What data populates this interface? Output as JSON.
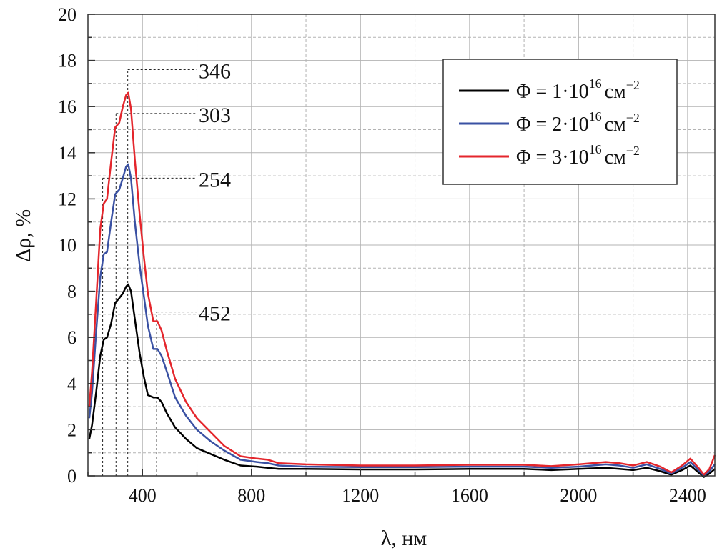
{
  "chart_data": {
    "type": "line",
    "xlabel": "λ, нм",
    "ylabel": "Δρ, %",
    "xlim": [
      200,
      2500
    ],
    "ylim": [
      0,
      20
    ],
    "x_ticks": [
      400,
      800,
      1200,
      1600,
      2000,
      2400
    ],
    "y_ticks": [
      0,
      2,
      4,
      6,
      8,
      10,
      12,
      14,
      16,
      18,
      20
    ],
    "grid": true,
    "legend_position": "top-right",
    "series": [
      {
        "name": "Φ = 1·10¹⁶ см⁻²",
        "legend_main": "Φ = 1·10",
        "legend_sup": "16",
        "legend_unit": "см",
        "legend_unit_sup": "−2",
        "color": "#000000",
        "points": [
          [
            205,
            1.6
          ],
          [
            215,
            2.2
          ],
          [
            230,
            3.6
          ],
          [
            245,
            5.2
          ],
          [
            258,
            5.9
          ],
          [
            270,
            6.0
          ],
          [
            285,
            6.6
          ],
          [
            300,
            7.5
          ],
          [
            315,
            7.7
          ],
          [
            328,
            7.9
          ],
          [
            340,
            8.2
          ],
          [
            348,
            8.3
          ],
          [
            358,
            8.0
          ],
          [
            372,
            6.8
          ],
          [
            390,
            5.3
          ],
          [
            405,
            4.3
          ],
          [
            420,
            3.5
          ],
          [
            440,
            3.4
          ],
          [
            455,
            3.4
          ],
          [
            470,
            3.2
          ],
          [
            490,
            2.7
          ],
          [
            520,
            2.1
          ],
          [
            560,
            1.6
          ],
          [
            600,
            1.2
          ],
          [
            650,
            0.95
          ],
          [
            700,
            0.7
          ],
          [
            760,
            0.45
          ],
          [
            820,
            0.4
          ],
          [
            860,
            0.35
          ],
          [
            900,
            0.3
          ],
          [
            1000,
            0.3
          ],
          [
            1200,
            0.28
          ],
          [
            1400,
            0.28
          ],
          [
            1600,
            0.3
          ],
          [
            1800,
            0.3
          ],
          [
            1900,
            0.25
          ],
          [
            2000,
            0.3
          ],
          [
            2100,
            0.35
          ],
          [
            2150,
            0.3
          ],
          [
            2200,
            0.25
          ],
          [
            2250,
            0.35
          ],
          [
            2300,
            0.2
          ],
          [
            2340,
            0.05
          ],
          [
            2380,
            0.25
          ],
          [
            2410,
            0.45
          ],
          [
            2440,
            0.15
          ],
          [
            2460,
            -0.05
          ],
          [
            2480,
            0.1
          ],
          [
            2500,
            0.3
          ]
        ]
      },
      {
        "name": "Φ = 2·10¹⁶ см⁻²",
        "legend_main": "Φ = 2·10",
        "legend_sup": "16",
        "legend_unit": "см",
        "legend_unit_sup": "−2",
        "color": "#3a51a3",
        "points": [
          [
            205,
            2.5
          ],
          [
            215,
            3.6
          ],
          [
            230,
            6.2
          ],
          [
            245,
            8.6
          ],
          [
            258,
            9.6
          ],
          [
            270,
            9.7
          ],
          [
            285,
            11.0
          ],
          [
            300,
            12.2
          ],
          [
            315,
            12.4
          ],
          [
            328,
            12.9
          ],
          [
            340,
            13.4
          ],
          [
            348,
            13.5
          ],
          [
            358,
            12.9
          ],
          [
            372,
            11.0
          ],
          [
            390,
            9.1
          ],
          [
            405,
            7.8
          ],
          [
            420,
            6.5
          ],
          [
            440,
            5.5
          ],
          [
            455,
            5.5
          ],
          [
            470,
            5.2
          ],
          [
            490,
            4.5
          ],
          [
            520,
            3.4
          ],
          [
            560,
            2.6
          ],
          [
            600,
            2.0
          ],
          [
            650,
            1.5
          ],
          [
            700,
            1.1
          ],
          [
            760,
            0.7
          ],
          [
            820,
            0.6
          ],
          [
            860,
            0.55
          ],
          [
            900,
            0.45
          ],
          [
            1000,
            0.4
          ],
          [
            1200,
            0.38
          ],
          [
            1400,
            0.38
          ],
          [
            1600,
            0.4
          ],
          [
            1800,
            0.4
          ],
          [
            1900,
            0.35
          ],
          [
            2000,
            0.4
          ],
          [
            2100,
            0.5
          ],
          [
            2150,
            0.45
          ],
          [
            2200,
            0.35
          ],
          [
            2250,
            0.5
          ],
          [
            2300,
            0.3
          ],
          [
            2340,
            0.1
          ],
          [
            2380,
            0.35
          ],
          [
            2410,
            0.6
          ],
          [
            2440,
            0.25
          ],
          [
            2460,
            0.0
          ],
          [
            2480,
            0.2
          ],
          [
            2500,
            0.5
          ]
        ]
      },
      {
        "name": "Φ = 3·10¹⁶ см⁻²",
        "legend_main": "Φ = 3·10",
        "legend_sup": "16",
        "legend_unit": "см",
        "legend_unit_sup": "−2",
        "color": "#e4262c",
        "points": [
          [
            205,
            3.0
          ],
          [
            215,
            4.5
          ],
          [
            230,
            7.5
          ],
          [
            245,
            10.7
          ],
          [
            258,
            11.8
          ],
          [
            270,
            12.0
          ],
          [
            285,
            13.6
          ],
          [
            300,
            15.1
          ],
          [
            315,
            15.3
          ],
          [
            328,
            16.0
          ],
          [
            340,
            16.5
          ],
          [
            348,
            16.6
          ],
          [
            358,
            15.9
          ],
          [
            372,
            13.7
          ],
          [
            390,
            11.3
          ],
          [
            405,
            9.5
          ],
          [
            420,
            7.9
          ],
          [
            440,
            6.7
          ],
          [
            455,
            6.7
          ],
          [
            470,
            6.3
          ],
          [
            490,
            5.4
          ],
          [
            520,
            4.2
          ],
          [
            560,
            3.2
          ],
          [
            600,
            2.5
          ],
          [
            650,
            1.9
          ],
          [
            700,
            1.3
          ],
          [
            760,
            0.85
          ],
          [
            820,
            0.75
          ],
          [
            860,
            0.7
          ],
          [
            900,
            0.55
          ],
          [
            1000,
            0.5
          ],
          [
            1200,
            0.45
          ],
          [
            1400,
            0.45
          ],
          [
            1600,
            0.48
          ],
          [
            1800,
            0.48
          ],
          [
            1900,
            0.42
          ],
          [
            2000,
            0.5
          ],
          [
            2100,
            0.6
          ],
          [
            2150,
            0.55
          ],
          [
            2200,
            0.45
          ],
          [
            2250,
            0.6
          ],
          [
            2300,
            0.4
          ],
          [
            2340,
            0.15
          ],
          [
            2380,
            0.45
          ],
          [
            2410,
            0.75
          ],
          [
            2440,
            0.35
          ],
          [
            2460,
            0.05
          ],
          [
            2480,
            0.3
          ],
          [
            2500,
            0.9
          ]
        ]
      }
    ],
    "annotations": [
      {
        "label": "254",
        "x": 254,
        "y": 12.9
      },
      {
        "label": "303",
        "x": 303,
        "y": 15.7
      },
      {
        "label": "346",
        "x": 346,
        "y": 17.6
      },
      {
        "label": "452",
        "x": 452,
        "y": 7.1
      }
    ]
  }
}
